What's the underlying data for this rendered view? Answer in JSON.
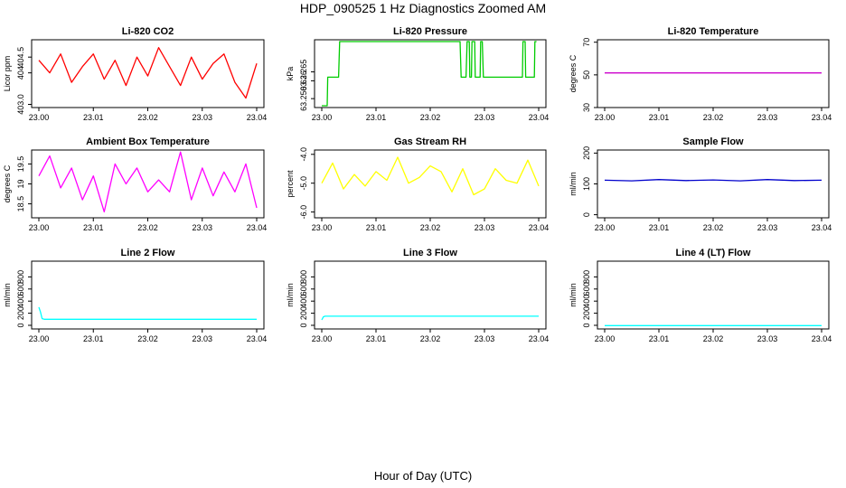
{
  "figure": {
    "title": "HDP_090525  1 Hz Diagnostics Zoomed AM",
    "xlabel": "Hour of Day (UTC)"
  },
  "chart_data": [
    {
      "type": "line",
      "title": "Li-820 CO2",
      "ylabel": "Licor ppm",
      "color": "#ff0000",
      "xlim": [
        23.0,
        23.04
      ],
      "ylim": [
        402.9,
        405.05
      ],
      "xticks": [
        "23.00",
        "23.01",
        "23.02",
        "23.03",
        "23.04"
      ],
      "yticks": [
        403.0,
        404.0,
        404.5
      ],
      "ytick_labels": [
        "403.0",
        "404",
        "404.5"
      ],
      "x": [
        23.0,
        23.002,
        23.004,
        23.006,
        23.008,
        23.01,
        23.012,
        23.014,
        23.016,
        23.018,
        23.02,
        23.022,
        23.024,
        23.026,
        23.028,
        23.03,
        23.032,
        23.034,
        23.036,
        23.038,
        23.04
      ],
      "y": [
        404.4,
        404.0,
        404.6,
        403.7,
        404.2,
        404.6,
        403.8,
        404.4,
        403.6,
        404.5,
        403.9,
        404.8,
        404.2,
        403.6,
        404.5,
        403.8,
        404.3,
        404.6,
        403.7,
        403.2,
        404.3
      ]
    },
    {
      "type": "line",
      "title": "Li-820 Pressure",
      "ylabel": "kPa",
      "color": "#00cc00",
      "xlim": [
        23.0,
        23.04
      ],
      "ylim": [
        63.245,
        63.283
      ],
      "xticks": [
        "23.00",
        "23.01",
        "23.02",
        "23.03",
        "23.04"
      ],
      "yticks": [
        63.25,
        63.26,
        63.265
      ],
      "ytick_labels": [
        "63.250",
        "63.26",
        "63.265"
      ],
      "x": [
        23.0,
        23.0008,
        23.001,
        23.0011,
        23.003,
        23.0031,
        23.0033,
        23.0034,
        23.0255,
        23.0257,
        23.0266,
        23.0268,
        23.0272,
        23.0273,
        23.0276,
        23.0277,
        23.0282,
        23.0283,
        23.0292,
        23.0293,
        23.0296,
        23.0298,
        23.0302,
        23.0304,
        23.037,
        23.0371,
        23.0375,
        23.0376,
        23.0392,
        23.0393,
        23.0396
      ],
      "y": [
        63.246,
        63.246,
        63.246,
        63.262,
        63.262,
        63.262,
        63.282,
        63.282,
        63.282,
        63.262,
        63.262,
        63.282,
        63.282,
        63.262,
        63.262,
        63.282,
        63.282,
        63.262,
        63.262,
        63.282,
        63.282,
        63.262,
        63.262,
        63.262,
        63.262,
        63.282,
        63.282,
        63.262,
        63.262,
        63.282,
        63.282
      ]
    },
    {
      "type": "line",
      "title": "Li-820 Temperature",
      "ylabel": "degrees C",
      "color": "#cc00cc",
      "xlim": [
        23.0,
        23.04
      ],
      "ylim": [
        30,
        71.5
      ],
      "xticks": [
        "23.00",
        "23.01",
        "23.02",
        "23.03",
        "23.04"
      ],
      "yticks": [
        30,
        50,
        70
      ],
      "ytick_labels": [
        "30",
        "50",
        "70"
      ],
      "x": [
        23.0,
        23.04
      ],
      "y": [
        51.2,
        51.2
      ]
    },
    {
      "type": "line",
      "title": "Ambient Box Temperature",
      "ylabel": "degrees C",
      "color": "#ff00ff",
      "xlim": [
        23.0,
        23.04
      ],
      "ylim": [
        18.15,
        19.85
      ],
      "xticks": [
        "23.00",
        "23.01",
        "23.02",
        "23.03",
        "23.04"
      ],
      "yticks": [
        18.5,
        19.0,
        19.5
      ],
      "ytick_labels": [
        "18.5",
        "19",
        "19.5"
      ],
      "x": [
        23.0,
        23.002,
        23.004,
        23.006,
        23.008,
        23.01,
        23.012,
        23.014,
        23.016,
        23.018,
        23.02,
        23.022,
        23.024,
        23.026,
        23.028,
        23.03,
        23.032,
        23.034,
        23.036,
        23.038,
        23.04
      ],
      "y": [
        19.2,
        19.7,
        18.9,
        19.4,
        18.6,
        19.2,
        18.3,
        19.5,
        19.0,
        19.4,
        18.8,
        19.1,
        18.8,
        19.8,
        18.6,
        19.4,
        18.7,
        19.3,
        18.8,
        19.5,
        18.4
      ]
    },
    {
      "type": "line",
      "title": "Gas Stream RH",
      "ylabel": "percent",
      "color": "#ffff00",
      "xlim": [
        23.0,
        23.04
      ],
      "ylim": [
        -6.2,
        -3.85
      ],
      "xticks": [
        "23.00",
        "23.01",
        "23.02",
        "23.03",
        "23.04"
      ],
      "yticks": [
        -6.0,
        -5.0,
        -4.0
      ],
      "ytick_labels": [
        "-6.0",
        "-5.0",
        "-4.0"
      ],
      "x": [
        23.0,
        23.002,
        23.004,
        23.006,
        23.008,
        23.01,
        23.012,
        23.014,
        23.016,
        23.018,
        23.02,
        23.022,
        23.024,
        23.026,
        23.028,
        23.03,
        23.032,
        23.034,
        23.036,
        23.038,
        23.04
      ],
      "y": [
        -5.0,
        -4.3,
        -5.2,
        -4.7,
        -5.1,
        -4.6,
        -4.9,
        -4.1,
        -5.0,
        -4.8,
        -4.4,
        -4.6,
        -5.3,
        -4.5,
        -5.4,
        -5.2,
        -4.5,
        -4.9,
        -5.0,
        -4.2,
        -5.1
      ]
    },
    {
      "type": "line",
      "title": "Sample Flow",
      "ylabel": "ml/min",
      "color": "#0000cc",
      "xlim": [
        23.0,
        23.04
      ],
      "ylim": [
        -10,
        210
      ],
      "xticks": [
        "23.00",
        "23.01",
        "23.02",
        "23.03",
        "23.04"
      ],
      "yticks": [
        0,
        100,
        200
      ],
      "ytick_labels": [
        "0",
        "100",
        "200"
      ],
      "x": [
        23.0,
        23.005,
        23.01,
        23.015,
        23.02,
        23.025,
        23.03,
        23.035,
        23.04
      ],
      "y": [
        112,
        110,
        114,
        111,
        113,
        110,
        114,
        111,
        112
      ]
    },
    {
      "type": "line",
      "title": "Line 2 Flow",
      "ylabel": "ml/min",
      "color": "#00ffff",
      "xlim": [
        23.0,
        23.04
      ],
      "ylim": [
        -60,
        1060
      ],
      "xticks": [
        "23.00",
        "23.01",
        "23.02",
        "23.03",
        "23.04"
      ],
      "yticks": [
        0,
        200,
        400,
        600,
        800
      ],
      "ytick_labels": [
        "0",
        "200",
        "400",
        "600",
        "800"
      ],
      "x": [
        23.0,
        23.0003,
        23.0006,
        23.001,
        23.01,
        23.02,
        23.03,
        23.04
      ],
      "y": [
        300,
        220,
        110,
        100,
        100,
        100,
        100,
        100
      ]
    },
    {
      "type": "line",
      "title": "Line 3 Flow",
      "ylabel": "ml/min",
      "color": "#00ffff",
      "xlim": [
        23.0,
        23.04
      ],
      "ylim": [
        -60,
        1060
      ],
      "xticks": [
        "23.00",
        "23.01",
        "23.02",
        "23.03",
        "23.04"
      ],
      "yticks": [
        0,
        200,
        400,
        600,
        800
      ],
      "ytick_labels": [
        "0",
        "200",
        "400",
        "600",
        "800"
      ],
      "x": [
        23.0,
        23.0003,
        23.0006,
        23.01,
        23.02,
        23.03,
        23.04
      ],
      "y": [
        90,
        140,
        150,
        150,
        150,
        150,
        150
      ]
    },
    {
      "type": "line",
      "title": "Line 4 (LT) Flow",
      "ylabel": "ml/min",
      "color": "#00ffff",
      "xlim": [
        23.0,
        23.04
      ],
      "ylim": [
        -60,
        1060
      ],
      "xticks": [
        "23.00",
        "23.01",
        "23.02",
        "23.03",
        "23.04"
      ],
      "yticks": [
        0,
        200,
        400,
        600,
        800
      ],
      "ytick_labels": [
        "0",
        "200",
        "400",
        "600",
        "800"
      ],
      "x": [
        23.0,
        23.01,
        23.02,
        23.03,
        23.04
      ],
      "y": [
        -5,
        -5,
        -5,
        -5,
        -5
      ]
    }
  ]
}
